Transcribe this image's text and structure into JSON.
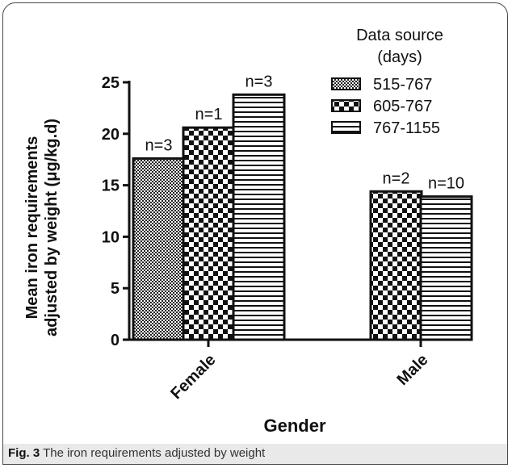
{
  "caption": {
    "label": "Fig. 3",
    "text": "The iron requirements adjusted by weight"
  },
  "chart_data": {
    "type": "bar",
    "ylabel": [
      "Mean iron requirements",
      "adjusted by weight (μg/kg.d)"
    ],
    "xlabel": "Gender",
    "ylim": [
      0,
      25
    ],
    "yticks": [
      0,
      5,
      10,
      15,
      20,
      25
    ],
    "categories": [
      "Female",
      "Male"
    ],
    "legend": {
      "title": [
        "Data source",
        "(days)"
      ],
      "placement": "top-right"
    },
    "series": [
      {
        "name": "515-767",
        "pattern": "fine-check",
        "values": [
          17.6,
          null
        ],
        "labels": [
          "n=3",
          null
        ]
      },
      {
        "name": "605-767",
        "pattern": "coarse-check",
        "values": [
          20.6,
          14.4
        ],
        "labels": [
          "n=1",
          "n=2"
        ]
      },
      {
        "name": "767-1155",
        "pattern": "horizontal-lines",
        "values": [
          23.8,
          13.9
        ],
        "labels": [
          "n=3",
          "n=10"
        ]
      }
    ]
  }
}
